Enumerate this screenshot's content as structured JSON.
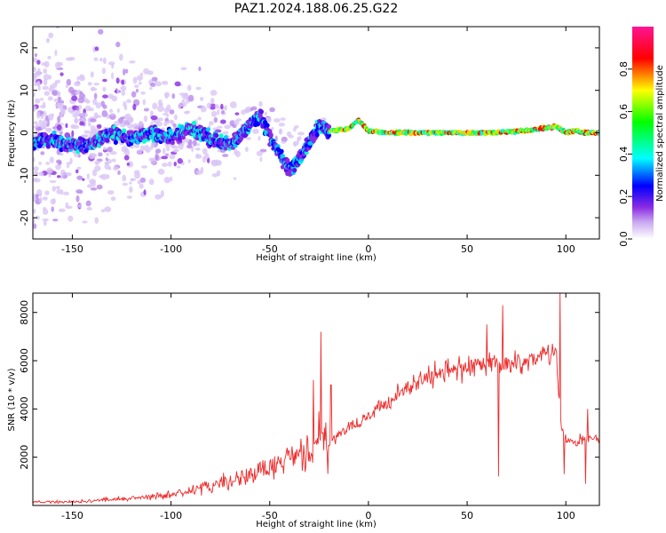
{
  "chart_data": [
    {
      "type": "heatmap",
      "title": "PAZ1.2024.188.06.25.G22",
      "xlabel": "Height of straight line (km)",
      "ylabel": "Frequency (Hz)",
      "xlim": [
        -170,
        117
      ],
      "ylim": [
        -25,
        25
      ],
      "xticks": [
        -150,
        -100,
        -50,
        0,
        50,
        100
      ],
      "xtick_labels": [
        "-150",
        "-100",
        "-50",
        "0",
        "50",
        "100"
      ],
      "yticks": [
        -20,
        -10,
        0,
        10,
        20
      ],
      "ytick_labels": [
        "-20",
        "-10",
        "0",
        "10",
        "20"
      ],
      "colorbar": {
        "label": "Normalized spectral amplitude",
        "range": [
          0,
          1
        ],
        "ticks": [
          0.0,
          0.2,
          0.4,
          0.6,
          0.8
        ],
        "tick_labels": [
          "0.0",
          "0.2",
          "0.4",
          "0.6",
          "0.8"
        ],
        "colors": [
          "#ffffff",
          "#8a2be2",
          "#0000ff",
          "#00ffff",
          "#00ff00",
          "#ffff00",
          "#ff0000",
          "#ff1493"
        ]
      },
      "ridge": {
        "x": [
          -170,
          -160,
          -150,
          -140,
          -130,
          -120,
          -110,
          -100,
          -90,
          -80,
          -70,
          -60,
          -55,
          -50,
          -45,
          -40,
          -35,
          -30,
          -25,
          -20,
          -10,
          -5,
          0,
          10,
          20,
          40,
          60,
          80,
          95,
          100,
          105,
          110,
          117
        ],
        "y": [
          -2,
          -1.5,
          -3,
          -2.5,
          0,
          -1.5,
          0,
          -1,
          1,
          -1.5,
          -3,
          2,
          4,
          -1,
          -5,
          -9,
          -6,
          -2,
          1.5,
          0.5,
          1,
          3,
          0.5,
          0,
          0,
          0,
          0,
          0.5,
          1.5,
          0,
          0.5,
          0,
          0
        ],
        "peak_amplitude_from_x": -20
      },
      "grid": false
    },
    {
      "type": "line",
      "title": "",
      "xlabel": "Height of straight line (km)",
      "ylabel": "SNR (10 * v/v)",
      "xlim": [
        -170,
        117
      ],
      "ylim": [
        0,
        8800
      ],
      "xticks": [
        -150,
        -100,
        -50,
        0,
        50,
        100
      ],
      "xtick_labels": [
        "-150",
        "-100",
        "-50",
        "0",
        "50",
        "100"
      ],
      "yticks": [
        2000,
        4000,
        6000,
        8000
      ],
      "ytick_labels": [
        "2000",
        "4000",
        "6000",
        "8000"
      ],
      "series": [
        {
          "color": "#ee2a2a",
          "x": [
            -170,
            -150,
            -130,
            -110,
            -100,
            -90,
            -80,
            -70,
            -60,
            -50,
            -45,
            -40,
            -35,
            -30,
            -25,
            -20,
            -15,
            -10,
            -5,
            0,
            10,
            20,
            30,
            40,
            50,
            60,
            70,
            80,
            90,
            95,
            98,
            100,
            105,
            110,
            117
          ],
          "y": [
            150,
            150,
            250,
            350,
            450,
            600,
            800,
            1000,
            1250,
            1550,
            1700,
            1900,
            2050,
            2300,
            2700,
            2500,
            3000,
            3300,
            3300,
            3700,
            4300,
            4900,
            5300,
            5600,
            5700,
            5850,
            5850,
            6000,
            6300,
            6250,
            3000,
            2700,
            2600,
            2800,
            2800
          ],
          "spikes": [
            {
              "x": -24,
              "y": 7200
            },
            {
              "x": -28,
              "y": 5200
            },
            {
              "x": -19,
              "y": 5000
            },
            {
              "x": 60,
              "y": 7500
            },
            {
              "x": 66,
              "y": 1200
            },
            {
              "x": 68,
              "y": 8300
            },
            {
              "x": 97,
              "y": 8800
            },
            {
              "x": 99,
              "y": 1300
            },
            {
              "x": 110,
              "y": 900
            },
            {
              "x": 111,
              "y": 4000
            }
          ]
        }
      ],
      "grid": false
    }
  ]
}
